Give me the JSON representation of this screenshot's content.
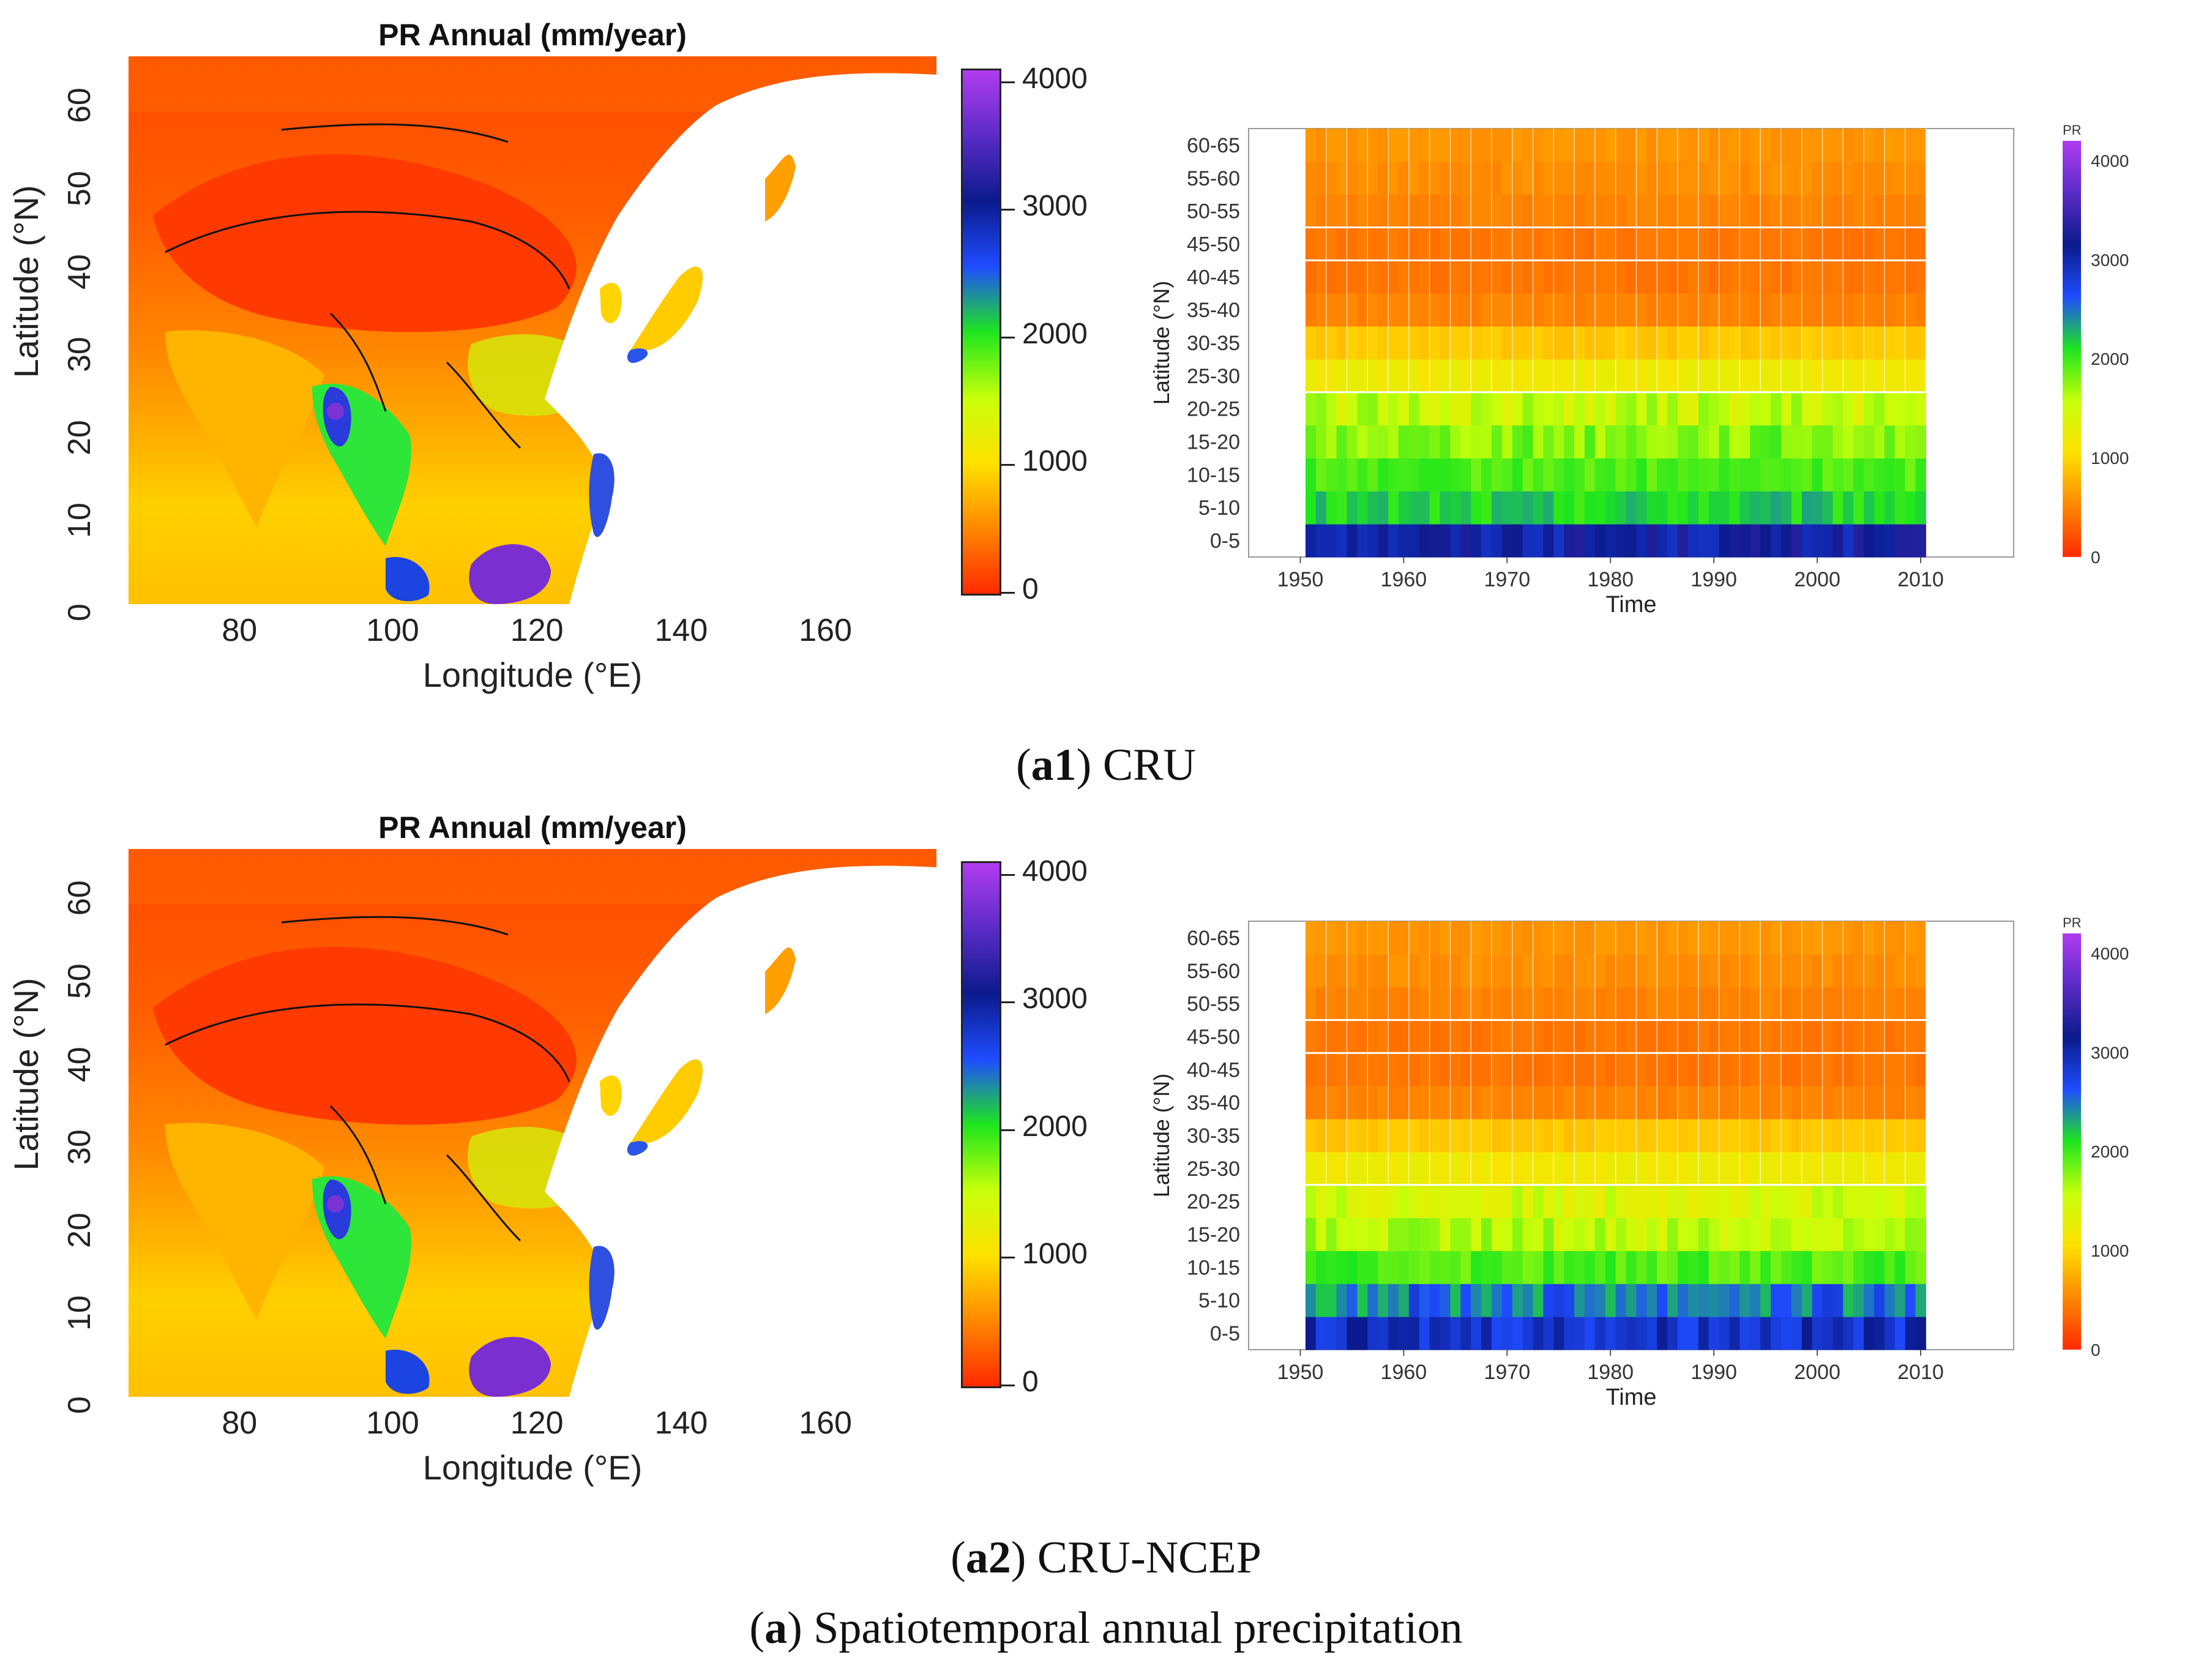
{
  "colors": {
    "scale": [
      "#ff2a00",
      "#ff8800",
      "#ffe100",
      "#c7ff0a",
      "#1de61d",
      "#1f4cff",
      "#0b1a8c",
      "#5a2bc6",
      "#b13cf0"
    ],
    "land": "#ff5a00",
    "ocean": "#ffffff",
    "border": "#111111"
  },
  "panels": [
    {
      "id": "a1",
      "map_title": "PR Annual (mm/year)",
      "map_xlabel": "Longitude (°E)",
      "map_ylabel": "Latitude (°N)",
      "map_xticks": [
        "80",
        "100",
        "120",
        "140",
        "160"
      ],
      "map_yticks": [
        "0",
        "10",
        "20",
        "30",
        "40",
        "50",
        "60"
      ],
      "map_colorbar_ticks": [
        "0",
        "1000",
        "2000",
        "3000",
        "4000"
      ],
      "caption_label": "a1",
      "caption_text": ") CRU",
      "caption_open": "("
    },
    {
      "id": "a2",
      "map_title": "PR Annual (mm/year)",
      "map_xlabel": "Longitude (°E)",
      "map_ylabel": "Latitude (°N)",
      "map_xticks": [
        "80",
        "100",
        "120",
        "140",
        "160"
      ],
      "map_yticks": [
        "0",
        "10",
        "20",
        "30",
        "40",
        "50",
        "60"
      ],
      "map_colorbar_ticks": [
        "0",
        "1000",
        "2000",
        "3000",
        "4000"
      ],
      "caption_label": "a2",
      "caption_text": ") CRU-NCEP",
      "caption_open": "("
    }
  ],
  "figure_caption": {
    "open": "(",
    "label": "a",
    "text": ") Spatiotemporal annual precipitation"
  },
  "chart_data": [
    {
      "type": "heatmap",
      "title": "CRU",
      "xlabel": "Time",
      "ylabel": "Latitude (°N)",
      "legend_title": "PR",
      "x_range": [
        1951,
        2010
      ],
      "x_ticks": [
        "1950",
        "1960",
        "1970",
        "1980",
        "1990",
        "2000",
        "2010"
      ],
      "xlim": [
        1945,
        2019
      ],
      "categories": [
        "0-5",
        "5-10",
        "10-15",
        "15-20",
        "20-25",
        "25-30",
        "30-35",
        "35-40",
        "40-45",
        "45-50",
        "50-55",
        "55-60",
        "60-65"
      ],
      "band_means": [
        3100,
        2150,
        1950,
        1800,
        1550,
        1200,
        900,
        500,
        420,
        430,
        500,
        560,
        600
      ],
      "band_variability": [
        220,
        180,
        120,
        200,
        220,
        80,
        60,
        40,
        40,
        40,
        40,
        50,
        50
      ],
      "colorbar_ticks": [
        "0",
        "1000",
        "2000",
        "3000",
        "4000"
      ],
      "colorbar_range": [
        0,
        4200
      ]
    },
    {
      "type": "heatmap",
      "title": "CRU-NCEP",
      "xlabel": "Time",
      "ylabel": "Latitude (°N)",
      "legend_title": "PR",
      "x_range": [
        1951,
        2010
      ],
      "x_ticks": [
        "1950",
        "1960",
        "1970",
        "1980",
        "1990",
        "2000",
        "2010"
      ],
      "xlim": [
        1945,
        2019
      ],
      "categories": [
        "0-5",
        "5-10",
        "10-15",
        "15-20",
        "20-25",
        "25-30",
        "30-35",
        "35-40",
        "40-45",
        "45-50",
        "50-55",
        "55-60",
        "60-65"
      ],
      "band_means": [
        2900,
        2500,
        1950,
        1600,
        1450,
        1200,
        900,
        500,
        420,
        430,
        500,
        560,
        600
      ],
      "band_variability": [
        250,
        300,
        150,
        220,
        220,
        80,
        60,
        40,
        40,
        40,
        40,
        50,
        50
      ],
      "colorbar_ticks": [
        "0",
        "1000",
        "2000",
        "3000",
        "4000"
      ],
      "colorbar_range": [
        0,
        4200
      ]
    }
  ]
}
